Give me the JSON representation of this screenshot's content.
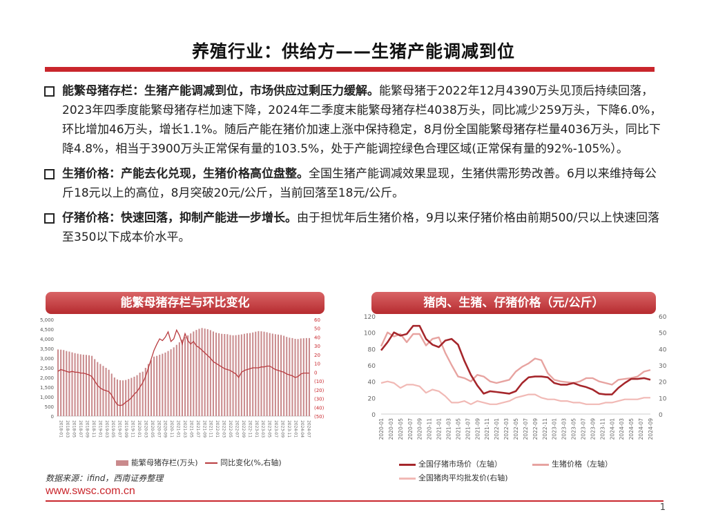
{
  "title": "养殖行业：供给方——生猪产能调减到位",
  "bullets": [
    {
      "head": "能繁母猪存栏：生猪产能调减到位，市场供应过剩压力缓解。",
      "body": "能繁母猪于2022年12月4390万头见顶后持续回落，2023年四季度能繁母猪存栏加速下降，2024年二季度末能繁母猪存栏4038万头，同比减少259万头，下降6.0%，环比增加46万头，增长1.1%。随后产能在猪价加速上涨中保持稳定，8月份全国能繁母猪存栏量4036万头，同比下降4.8%，相当于3900万头正常保有量的103.5%，处于产能调控绿色合理区域(正常保有量的92%-105%）。"
    },
    {
      "head": "生猪价格：产能去化兑现，生猪价格高位盘整。",
      "body": "全国生猪产能调减效果显现，生猪供需形势改善。6月以来维持每公斤18元以上的高位，8月突破20元/公斤，当前回落至18元/公斤。"
    },
    {
      "head": "仔猪价格：快速回落，抑制产能进一步增长。",
      "body": "由于担忧年后生猪价格，9月以来仔猪价格由前期500/只以上快速回落至350以下成本价水平。"
    }
  ],
  "chart_left_banner": "能繁母猪存栏与环比变化",
  "chart_right_banner": "猪肉、生猪、仔猪价格（元/公斤）",
  "source": "数据来源：ifind，西南证券整理",
  "url": "www.swsc.com.cn",
  "page_number": "1",
  "colors": {
    "accent": "#c9262c",
    "bar": "#c98a8c",
    "mom_line": "#b83a3e",
    "piglet": "#a5262b",
    "hog": "#e7a3a0",
    "pork": "#f1b9b5"
  },
  "chart_data": [
    {
      "type": "bar",
      "title": "能繁母猪存栏与环比变化",
      "x_ticks": [
        "2018-01",
        "2018-03",
        "2018-05",
        "2018-07",
        "2018-09",
        "2018-11",
        "2019-01",
        "2019-03",
        "2019-05",
        "2019-07",
        "2019-09",
        "2019-11",
        "2020-01",
        "2020-03",
        "2020-05",
        "2020-07",
        "2020-09",
        "2020-11",
        "2021-01",
        "2021-03",
        "2021-05",
        "2021-07",
        "2021-09",
        "2021-11",
        "2022-01",
        "2022-03",
        "2022-05",
        "2022-07",
        "2022-09",
        "2022-11",
        "2023-01",
        "2023-03",
        "2023-05",
        "2023-07",
        "2023-09",
        "2023-11",
        "2024-01",
        "2024-04",
        "2024-07"
      ],
      "ylim_left": [
        0,
        5000
      ],
      "yticks_left": [
        "0",
        "500",
        "1,000",
        "1,500",
        "2,000",
        "2,500",
        "3,000",
        "3,500",
        "4,000",
        "4,500",
        "5,000"
      ],
      "ylim_right": [
        -50,
        60
      ],
      "yticks_right": [
        "(50)",
        "(40)",
        "(30)",
        "(20)",
        "(10)",
        "0",
        "10",
        "20",
        "30",
        "40",
        "50",
        "60"
      ],
      "series": [
        {
          "name": "能繁母猪存栏(万头)",
          "axis": "left",
          "type": "bar",
          "values": [
            3450,
            3440,
            3420,
            3370,
            3340,
            3300,
            3260,
            3230,
            3200,
            3180,
            3170,
            3150,
            3120,
            2950,
            2800,
            2700,
            2600,
            2500,
            2400,
            2200,
            2000,
            1900,
            1860,
            1850,
            1870,
            1920,
            1980,
            2040,
            2120,
            2250,
            2300,
            2500,
            2700,
            2900,
            3080,
            3120,
            3180,
            3230,
            3290,
            3370,
            3460,
            3560,
            3690,
            3820,
            3960,
            4100,
            4180,
            4280,
            4380,
            4460,
            4520,
            4560,
            4530,
            4500,
            4450,
            4380,
            4320,
            4290,
            4260,
            4250,
            4240,
            4200,
            4180,
            4190,
            4210,
            4230,
            4260,
            4290,
            4300,
            4330,
            4370,
            4400,
            4390,
            4370,
            4340,
            4300,
            4270,
            4240,
            4220,
            4200,
            4160,
            4100,
            4060,
            4040,
            4000,
            3990,
            4020,
            4030,
            4040,
            4040
          ]
        },
        {
          "name": "同比变化(%,右轴)",
          "axis": "right",
          "type": "line",
          "values": [
            1,
            3,
            2,
            1,
            0,
            1,
            0,
            0,
            -1,
            -1,
            -2,
            -3,
            -5,
            -10,
            -15,
            -18,
            -20,
            -21,
            -22,
            -26,
            -32,
            -37,
            -38,
            -37,
            -34,
            -32,
            -29,
            -25,
            -22,
            -17,
            -12,
            -5,
            5,
            15,
            25,
            32,
            38,
            36,
            40,
            46,
            35,
            38,
            48,
            42,
            32,
            44,
            36,
            32,
            35,
            30,
            28,
            25,
            22,
            19,
            16,
            12,
            10,
            8,
            6,
            4,
            3,
            2,
            0,
            -2,
            -6,
            0,
            2,
            3,
            4,
            5,
            5,
            5,
            6,
            6,
            7,
            7,
            5,
            3,
            2,
            1,
            0,
            -2,
            -3,
            -4,
            -6,
            -5,
            -2,
            -1,
            -1,
            -1
          ]
        }
      ],
      "legend": [
        "能繁母猪存栏(万头)",
        "同比变化(%,右轴)"
      ]
    },
    {
      "type": "line",
      "title": "猪肉、生猪、仔猪价格（元/公斤）",
      "x_ticks": [
        "2020-01",
        "2020-03",
        "2020-05",
        "2020-07",
        "2020-09",
        "2020-11",
        "2021-01",
        "2021-03",
        "2021-05",
        "2021-07",
        "2021-09",
        "2021-11",
        "2022-01",
        "2022-03",
        "2022-05",
        "2022-07",
        "2022-09",
        "2022-11",
        "2023-01",
        "2023-03",
        "2023-05",
        "2023-07",
        "2023-09",
        "2023-11",
        "2024-01",
        "2024-03",
        "2024-05",
        "2024-07",
        "2024-09"
      ],
      "ylim_left": [
        0,
        120
      ],
      "yticks_left": [
        "0",
        "20",
        "40",
        "60",
        "80",
        "100",
        "120"
      ],
      "ylim_right": [
        0,
        60
      ],
      "yticks_right": [
        "0",
        "10",
        "20",
        "30",
        "40",
        "50",
        "60"
      ],
      "series": [
        {
          "name": "全国仔猪市场价（左轴）",
          "axis": "left",
          "values": [
            78,
            88,
            100,
            96,
            98,
            108,
            108,
            92,
            85,
            82,
            90,
            92,
            85,
            65,
            48,
            35,
            25,
            28,
            27,
            26,
            25,
            28,
            38,
            45,
            46,
            46,
            45,
            38,
            36,
            36,
            38,
            35,
            33,
            30,
            25,
            24,
            24,
            32,
            38,
            43,
            43,
            44,
            42
          ]
        },
        {
          "name": "生猪价格（左轴）",
          "axis": "left",
          "values": [
            83,
            100,
            95,
            98,
            88,
            98,
            98,
            84,
            92,
            94,
            75,
            60,
            46,
            44,
            40,
            48,
            46,
            40,
            38,
            40,
            42,
            52,
            58,
            62,
            68,
            66,
            50,
            42,
            40,
            39,
            38,
            40,
            44,
            44,
            40,
            38,
            36,
            42,
            43,
            44,
            46,
            52,
            54
          ]
        },
        {
          "name": "全国猪肉平均批发价(右轴)",
          "axis": "right",
          "values": [
            19,
            20,
            19,
            16,
            18,
            18,
            17,
            13,
            15,
            14,
            11,
            7,
            7,
            8,
            6,
            8,
            7,
            6,
            6,
            7,
            8,
            10,
            11,
            12,
            12,
            10,
            9,
            9,
            8,
            8,
            7,
            7,
            6,
            6,
            6,
            7,
            7,
            8,
            9,
            9,
            9,
            10,
            10
          ]
        }
      ],
      "legend": [
        "全国仔猪市场价（左轴）",
        "生猪价格（左轴）",
        "全国猪肉平均批发价(右轴)"
      ]
    }
  ]
}
